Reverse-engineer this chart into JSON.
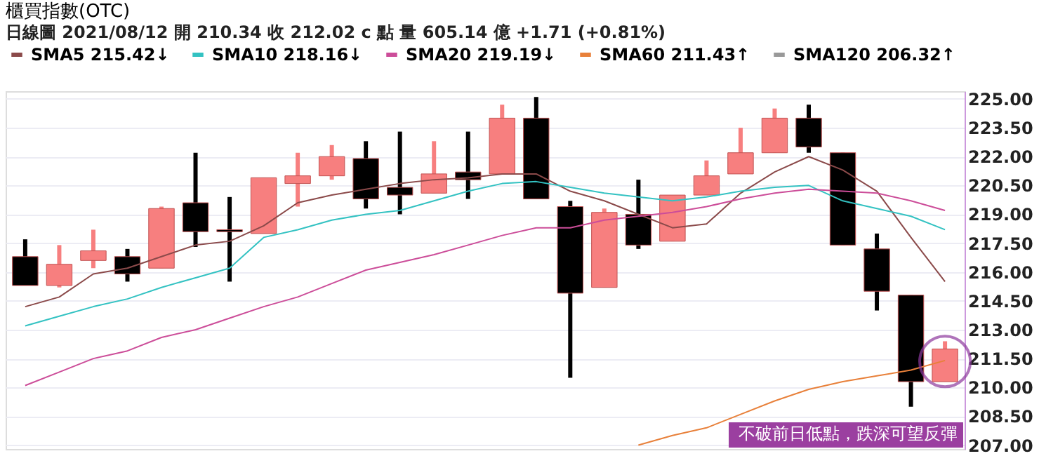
{
  "chart_data": {
    "type": "candlestick",
    "title": "櫃買指數(OTC)",
    "subtitle": "日線圖  2021/08/12  開 210.34  收 212.02 c 點  量 605.14 億  +1.71 (+0.81%)",
    "categories": [
      null,
      null,
      null,
      null,
      null,
      null,
      null,
      null,
      null,
      null,
      null,
      null,
      null,
      null,
      null,
      null,
      null,
      null,
      null,
      null,
      null,
      null,
      null,
      null,
      null,
      null,
      null,
      null
    ],
    "ohlc": [
      [
        216.8,
        217.7,
        215.3,
        215.3
      ],
      [
        215.3,
        217.4,
        215.2,
        216.4
      ],
      [
        216.6,
        218.2,
        216.2,
        217.1
      ],
      [
        216.8,
        217.2,
        215.5,
        215.9
      ],
      [
        216.2,
        219.4,
        216.2,
        219.3
      ],
      [
        219.6,
        222.2,
        217.3,
        218.1
      ],
      [
        218.2,
        219.9,
        215.5,
        218.1
      ],
      [
        218.0,
        220.9,
        218.0,
        220.9
      ],
      [
        220.6,
        222.2,
        219.4,
        221.0
      ],
      [
        221.0,
        222.6,
        220.8,
        222.0
      ],
      [
        221.9,
        222.8,
        219.3,
        219.8
      ],
      [
        220.4,
        223.3,
        219.0,
        220.0
      ],
      [
        220.1,
        222.8,
        220.1,
        221.1
      ],
      [
        221.2,
        223.3,
        219.8,
        220.8
      ],
      [
        221.1,
        224.7,
        221.1,
        224.0
      ],
      [
        224.0,
        225.1,
        219.8,
        219.8
      ],
      [
        219.4,
        219.7,
        210.5,
        214.9
      ],
      [
        215.2,
        219.3,
        215.2,
        219.1
      ],
      [
        219.0,
        220.8,
        217.2,
        217.4
      ],
      [
        217.6,
        220.0,
        217.6,
        220.0
      ],
      [
        220.0,
        221.8,
        220.0,
        221.0
      ],
      [
        221.1,
        223.5,
        221.1,
        222.2
      ],
      [
        222.2,
        224.5,
        222.2,
        224.0
      ],
      [
        224.0,
        224.7,
        222.2,
        222.5
      ],
      [
        222.2,
        222.2,
        217.4,
        217.4
      ],
      [
        217.2,
        218.0,
        214.0,
        215.0
      ],
      [
        214.8,
        214.8,
        209.0,
        210.3
      ],
      [
        210.3,
        212.4,
        210.3,
        212.0
      ]
    ],
    "colors": [
      "#000000",
      "#f77f7f",
      "#f77f7f",
      "#000000",
      "#f77f7f",
      "#000000",
      "#000000",
      "#f77f7f",
      "#f77f7f",
      "#f77f7f",
      "#000000",
      "#000000",
      "#f77f7f",
      "#000000",
      "#f77f7f",
      "#000000",
      "#000000",
      "#f77f7f",
      "#000000",
      "#f77f7f",
      "#f77f7f",
      "#f77f7f",
      "#f77f7f",
      "#000000",
      "#000000",
      "#000000",
      "#000000",
      "#f77f7f"
    ],
    "series": [
      {
        "name": "SMA5 215.42↓",
        "type": "line",
        "color": "#8b4a4a",
        "values": [
          214.2,
          214.7,
          215.9,
          216.2,
          216.8,
          217.4,
          217.6,
          218.4,
          219.6,
          220.0,
          220.3,
          220.6,
          220.8,
          220.9,
          221.1,
          221.1,
          220.2,
          219.7,
          219.0,
          218.3,
          218.5,
          220.1,
          221.2,
          222.0,
          221.3,
          220.2,
          217.8,
          215.5
        ]
      },
      {
        "name": "SMA10 218.16↓",
        "type": "line",
        "color": "#33c2c2",
        "values": [
          213.2,
          213.7,
          214.2,
          214.6,
          215.2,
          215.7,
          216.2,
          217.8,
          218.2,
          218.7,
          219.0,
          219.2,
          219.7,
          220.2,
          220.6,
          220.7,
          220.4,
          220.1,
          219.9,
          219.7,
          219.9,
          220.2,
          220.4,
          220.5,
          219.7,
          219.3,
          218.9,
          218.2
        ]
      },
      {
        "name": "SMA20 219.19↓",
        "type": "line",
        "color": "#cc4d99",
        "values": [
          210.1,
          210.8,
          211.5,
          211.9,
          212.6,
          213.0,
          213.6,
          214.2,
          214.7,
          215.4,
          216.1,
          216.5,
          216.9,
          217.4,
          217.9,
          218.3,
          218.3,
          218.7,
          218.9,
          219.1,
          219.4,
          219.8,
          220.1,
          220.3,
          220.2,
          220.1,
          219.7,
          219.2
        ]
      },
      {
        "name": "SMA60 211.43↑",
        "type": "line",
        "color": "#e8803a",
        "values": [
          null,
          null,
          null,
          null,
          null,
          null,
          null,
          null,
          null,
          null,
          null,
          null,
          null,
          null,
          null,
          null,
          null,
          null,
          207.0,
          207.5,
          207.9,
          208.6,
          209.3,
          209.9,
          210.3,
          210.6,
          210.9,
          211.4
        ]
      },
      {
        "name": "SMA120 206.32↑",
        "type": "line",
        "color": "#999999",
        "values": [
          null,
          null,
          null,
          null,
          null,
          null,
          null,
          null,
          null,
          null,
          null,
          null,
          null,
          null,
          null,
          null,
          null,
          null,
          null,
          null,
          null,
          null,
          null,
          null,
          null,
          null,
          null,
          null
        ]
      }
    ],
    "ylim": [
      206.8,
      225.4
    ],
    "yticks": [
      {
        "value": 207,
        "label": "207.00"
      },
      {
        "value": 208.5,
        "label": "208.50"
      },
      {
        "value": 210,
        "label": "210.00"
      },
      {
        "value": 211.5,
        "label": "211.50"
      },
      {
        "value": 213,
        "label": "213.00"
      },
      {
        "value": 214.5,
        "label": "214.50"
      },
      {
        "value": 216,
        "label": "216.00"
      },
      {
        "value": 217.5,
        "label": "217.50"
      },
      {
        "value": 219,
        "label": "219.00"
      },
      {
        "value": 220.5,
        "label": "220.50"
      },
      {
        "value": 222,
        "label": "222.00"
      },
      {
        "value": 223.5,
        "label": "223.50"
      },
      {
        "value": 225,
        "label": "225.00"
      }
    ],
    "grid": "y",
    "legend": "top left",
    "tick_labels": "y",
    "annotations": [
      "不破前日低點，跌深可望反彈"
    ]
  }
}
